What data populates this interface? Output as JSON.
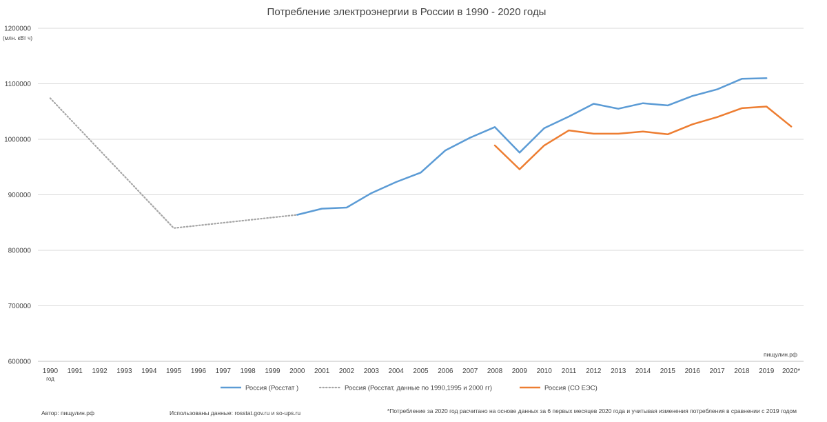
{
  "chart_data": {
    "type": "line",
    "title": "Потребление электроэнергии в России в 1990 - 2020 годы",
    "ylabel": "(млн. кВт ч)",
    "xlabel": "год",
    "ylim": [
      600000,
      1200000
    ],
    "y_ticks": [
      "600000",
      "700000",
      "800000",
      "900000",
      "1000000",
      "1100000",
      "1200000"
    ],
    "grid": "horizontal",
    "legend_position": "bottom",
    "categories": [
      "1990",
      "1991",
      "1992",
      "1993",
      "1994",
      "1995",
      "1996",
      "1997",
      "1998",
      "1999",
      "2000",
      "2001",
      "2002",
      "2003",
      "2004",
      "2005",
      "2006",
      "2007",
      "2008",
      "2009",
      "2010",
      "2011",
      "2012",
      "2013",
      "2014",
      "2015",
      "2016",
      "2017",
      "2018",
      "2019",
      "2020*"
    ],
    "series": [
      {
        "name": "Россия (Росстат )",
        "color": "#5b9bd5",
        "style": "solid",
        "points": [
          {
            "x": "2000",
            "y": 864000
          },
          {
            "x": "2001",
            "y": 875000
          },
          {
            "x": "2002",
            "y": 877000
          },
          {
            "x": "2003",
            "y": 903000
          },
          {
            "x": "2004",
            "y": 923000
          },
          {
            "x": "2005",
            "y": 940000
          },
          {
            "x": "2006",
            "y": 980000
          },
          {
            "x": "2007",
            "y": 1003000
          },
          {
            "x": "2008",
            "y": 1022000
          },
          {
            "x": "2009",
            "y": 976000
          },
          {
            "x": "2010",
            "y": 1020000
          },
          {
            "x": "2011",
            "y": 1041000
          },
          {
            "x": "2012",
            "y": 1064000
          },
          {
            "x": "2013",
            "y": 1055000
          },
          {
            "x": "2014",
            "y": 1065000
          },
          {
            "x": "2015",
            "y": 1061000
          },
          {
            "x": "2016",
            "y": 1078000
          },
          {
            "x": "2017",
            "y": 1090000
          },
          {
            "x": "2018",
            "y": 1109000
          },
          {
            "x": "2019",
            "y": 1110000
          }
        ]
      },
      {
        "name": "Россия (Росстат, данные по 1990,1995 и 2000 гг)",
        "color": "#a5a5a5",
        "style": "dotted",
        "points": [
          {
            "x": "1990",
            "y": 1074000
          },
          {
            "x": "1995",
            "y": 840000
          },
          {
            "x": "2000",
            "y": 864000
          }
        ]
      },
      {
        "name": "Россия (СО ЕЭС)",
        "color": "#ed7d31",
        "style": "solid",
        "points": [
          {
            "x": "2008",
            "y": 989000
          },
          {
            "x": "2009",
            "y": 946000
          },
          {
            "x": "2010",
            "y": 989000
          },
          {
            "x": "2011",
            "y": 1016000
          },
          {
            "x": "2012",
            "y": 1010000
          },
          {
            "x": "2013",
            "y": 1010000
          },
          {
            "x": "2014",
            "y": 1014000
          },
          {
            "x": "2015",
            "y": 1009000
          },
          {
            "x": "2016",
            "y": 1027000
          },
          {
            "x": "2017",
            "y": 1040000
          },
          {
            "x": "2018",
            "y": 1056000
          },
          {
            "x": "2019",
            "y": 1059000
          },
          {
            "x": "2020*",
            "y": 1023000
          }
        ]
      }
    ],
    "watermark": "пищулин.рф"
  },
  "footer": {
    "author": "Автор:  пищулин.рф",
    "sources": "Использованы данные: rosstat.gov.ru  и  so-ups.ru",
    "note": "*Потребление за 2020 год расчитано на основе данных за 6 первых месяцев 2020 года  и учитывая изменения потребления в сравнении с 2019 годом"
  }
}
